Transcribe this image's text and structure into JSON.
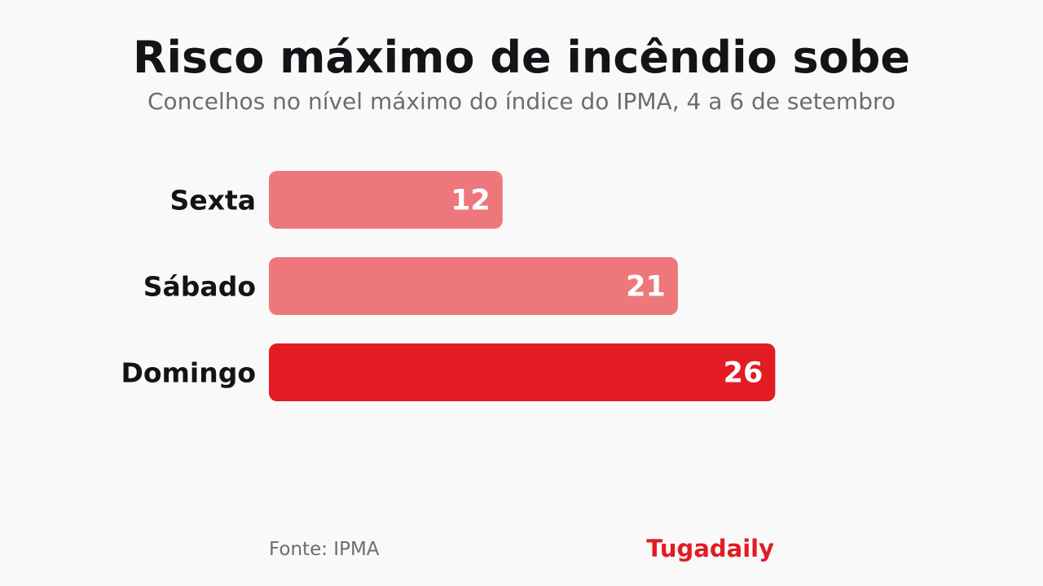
{
  "title": "Risco máximo de incêndio sobe",
  "subtitle": "Concelhos no nível máximo do índice do IPMA, 4 a 6 de setembro",
  "footer": {
    "source": "Fonte: IPMA",
    "brand": "Tugadaily"
  },
  "colors": {
    "background": "#f9f9f9",
    "bar_light": "#ee777b",
    "bar_highlight": "#e31b23",
    "brand": "#e31b23",
    "title": "#141418",
    "muted": "#6c6c72"
  },
  "chart_data": {
    "type": "bar",
    "orientation": "horizontal",
    "categories": [
      "Sexta",
      "Sábado",
      "Domingo"
    ],
    "values": [
      12,
      21,
      26
    ],
    "highlight_index": 2,
    "value_labels": [
      "12",
      "21",
      "26"
    ],
    "title": "Risco máximo de incêndio sobe",
    "subtitle": "Concelhos no nível máximo do índice do IPMA, 4 a 6 de setembro",
    "xlabel": "",
    "ylabel": "",
    "grid": false,
    "legend": "none"
  }
}
